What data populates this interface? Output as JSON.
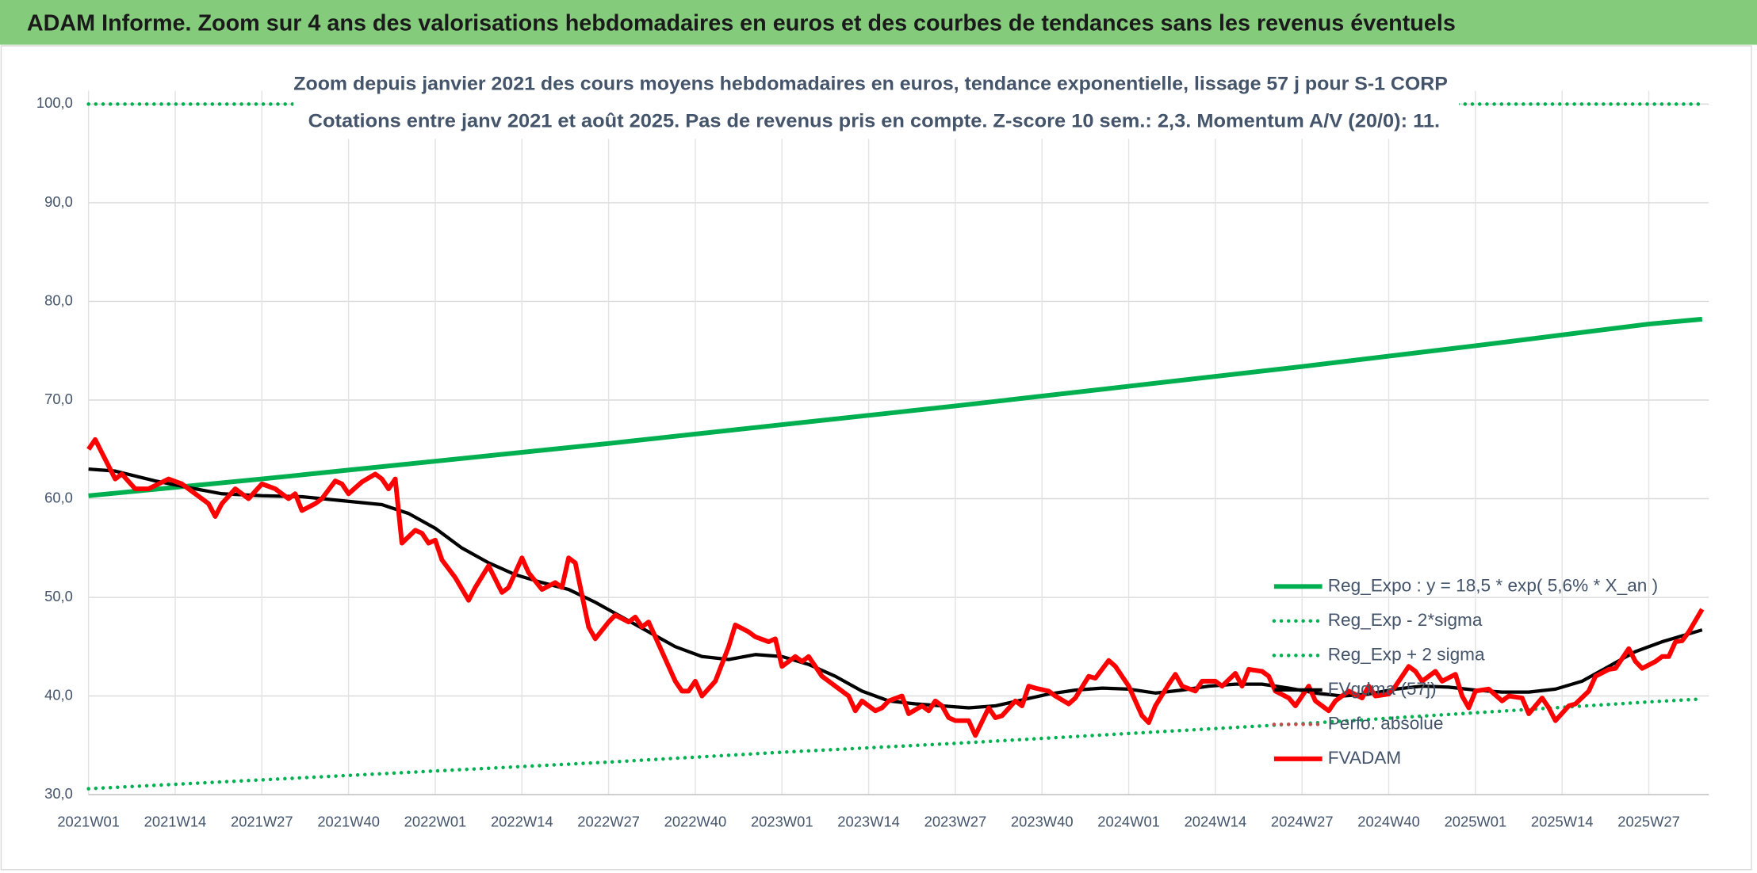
{
  "chart_data": {
    "type": "line",
    "title": "ADAM Informe. Zoom sur 4 ans des valorisations hebdomadaires en euros et des courbes de tendances sans les revenus éventuels",
    "subtitle": [
      "Zoom depuis janvier 2021 des cours moyens hebdomadaires en euros, tendance exponentielle, lissage 57 j pour S-1 CORP",
      "Cotations entre janv 2021 et août 2025. Pas de revenus pris en compte. Z-score 10 sem.: 2,3. Momentum A/V (20/0): 11."
    ],
    "xlim": [
      0,
      243
    ],
    "xticks": [
      {
        "value": 0,
        "label": "2021W01"
      },
      {
        "value": 13,
        "label": "2021W14"
      },
      {
        "value": 26,
        "label": "2021W27"
      },
      {
        "value": 39,
        "label": "2021W40"
      },
      {
        "value": 52,
        "label": "2022W01"
      },
      {
        "value": 65,
        "label": "2022W14"
      },
      {
        "value": 78,
        "label": "2022W27"
      },
      {
        "value": 91,
        "label": "2022W40"
      },
      {
        "value": 104,
        "label": "2023W01"
      },
      {
        "value": 117,
        "label": "2023W14"
      },
      {
        "value": 130,
        "label": "2023W27"
      },
      {
        "value": 143,
        "label": "2023W40"
      },
      {
        "value": 156,
        "label": "2024W01"
      },
      {
        "value": 169,
        "label": "2024W14"
      },
      {
        "value": 182,
        "label": "2024W27"
      },
      {
        "value": 195,
        "label": "2024W40"
      },
      {
        "value": 208,
        "label": "2025W01"
      },
      {
        "value": 221,
        "label": "2025W14"
      },
      {
        "value": 234,
        "label": "2025W27"
      }
    ],
    "ylim": [
      30,
      100
    ],
    "yticks": [
      {
        "value": 30,
        "label": "30,0"
      },
      {
        "value": 40,
        "label": "40,0"
      },
      {
        "value": 50,
        "label": "50,0"
      },
      {
        "value": 60,
        "label": "60,0"
      },
      {
        "value": 70,
        "label": "70,0"
      },
      {
        "value": 80,
        "label": "80,0"
      },
      {
        "value": 90,
        "label": "90,0"
      },
      {
        "value": 100,
        "label": "100,0"
      }
    ],
    "grid": true,
    "legend": "bottom-right",
    "series": [
      {
        "name": "Reg_Expo : y = 18,5 * exp( 5,6% *  X_an )",
        "color": "#00b050",
        "style": "solid",
        "x": [
          0,
          26,
          52,
          78,
          104,
          130,
          156,
          182,
          208,
          234,
          242
        ],
        "values": [
          60.3,
          62.0,
          63.8,
          65.6,
          67.5,
          69.4,
          71.4,
          73.4,
          75.5,
          77.7,
          78.2
        ]
      },
      {
        "name": "Reg_Exp - 2*sigma",
        "color": "#00b050",
        "style": "dotted",
        "x": [
          0,
          26,
          52,
          78,
          104,
          130,
          156,
          182,
          208,
          234,
          242
        ],
        "values": [
          30.6,
          31.5,
          32.4,
          33.3,
          34.3,
          35.2,
          36.2,
          37.2,
          38.3,
          39.4,
          39.7
        ]
      },
      {
        "name": "Reg_Exp + 2 sigma",
        "color": "#00b050",
        "style": "dotted",
        "x": [
          0,
          242
        ],
        "values": [
          100,
          100
        ]
      },
      {
        "name": "FVgdma (57j)",
        "color": "#000000",
        "style": "solid",
        "x": [
          0,
          4,
          10,
          16,
          20,
          26,
          32,
          38,
          44,
          48,
          52,
          56,
          60,
          64,
          68,
          72,
          76,
          80,
          84,
          88,
          92,
          96,
          100,
          104,
          108,
          112,
          116,
          120,
          124,
          128,
          132,
          136,
          140,
          144,
          148,
          152,
          156,
          160,
          164,
          168,
          172,
          176,
          180,
          184,
          188,
          192,
          196,
          200,
          204,
          208,
          212,
          216,
          220,
          224,
          228,
          232,
          236,
          240,
          242
        ],
        "values": [
          63,
          62.8,
          61.8,
          61,
          60.5,
          60.3,
          60.2,
          59.8,
          59.4,
          58.5,
          57,
          55,
          53.5,
          52.3,
          51.5,
          50.8,
          49.5,
          48,
          46.5,
          45,
          44,
          43.7,
          44.2,
          44,
          43.2,
          42,
          40.5,
          39.5,
          39.2,
          39,
          38.8,
          39,
          39.6,
          40.2,
          40.6,
          40.8,
          40.7,
          40.3,
          40.6,
          41,
          41.2,
          41.2,
          40.8,
          40.3,
          40,
          40.2,
          40.7,
          41,
          40.9,
          40.6,
          40.4,
          40.4,
          40.7,
          41.5,
          43,
          44.5,
          45.5,
          46.3,
          46.7
        ]
      },
      {
        "name": "Perfo. absolue",
        "color": "#c0504d",
        "style": "dotted",
        "x": [],
        "values": []
      },
      {
        "name": "FVADAM",
        "color": "#ff0000",
        "style": "solid",
        "x": [
          0,
          1,
          4,
          5,
          7,
          9,
          12,
          14,
          15,
          17,
          18,
          19,
          20,
          22,
          24,
          26,
          28,
          30,
          31,
          32,
          34,
          35,
          37,
          38,
          39,
          41,
          43,
          44,
          45,
          46,
          47,
          49,
          50,
          51,
          52,
          53,
          55,
          57,
          58,
          60,
          62,
          63,
          65,
          66,
          68,
          70,
          71,
          72,
          73,
          75,
          76,
          78,
          79,
          81,
          82,
          83,
          84,
          85,
          87,
          88,
          89,
          90,
          91,
          92,
          94,
          96,
          97,
          99,
          100,
          102,
          103,
          104,
          106,
          107,
          108,
          109,
          110,
          112,
          114,
          115,
          116,
          118,
          119,
          120,
          122,
          123,
          125,
          126,
          127,
          128,
          129,
          130,
          132,
          133,
          135,
          136,
          137,
          139,
          140,
          141,
          142,
          144,
          145,
          147,
          148,
          150,
          151,
          153,
          154,
          156,
          158,
          159,
          160,
          162,
          163,
          164,
          166,
          167,
          169,
          170,
          172,
          173,
          174,
          176,
          177,
          178,
          180,
          181,
          182,
          183,
          184,
          186,
          187,
          189,
          191,
          192,
          193,
          195,
          196,
          198,
          199,
          200,
          202,
          203,
          205,
          206,
          207,
          208,
          210,
          212,
          213,
          215,
          216,
          218,
          219,
          220,
          222,
          223,
          225,
          226,
          228,
          229,
          231,
          232,
          233,
          235,
          236,
          237,
          238,
          239,
          240,
          242
        ],
        "values": [
          65,
          66,
          62,
          62.5,
          61,
          61,
          62,
          61.5,
          61,
          60,
          59.5,
          58.2,
          59.5,
          61,
          60,
          61.5,
          61,
          60,
          60.5,
          58.8,
          59.5,
          60,
          61.8,
          61.5,
          60.5,
          61.7,
          62.5,
          62,
          61,
          62,
          55.5,
          56.8,
          56.5,
          55.5,
          55.8,
          53.8,
          52,
          49.7,
          51,
          53.2,
          50.5,
          51,
          54,
          52.5,
          50.8,
          51.5,
          51,
          54,
          53.5,
          47,
          45.8,
          47.5,
          48.2,
          47.5,
          48,
          47,
          47.5,
          46,
          43,
          41.5,
          40.5,
          40.5,
          41.5,
          40,
          41.5,
          45,
          47.2,
          46.5,
          46,
          45.5,
          45.8,
          43,
          44,
          43.5,
          44,
          43,
          42,
          41,
          40,
          38.5,
          39.5,
          38.5,
          38.8,
          39.5,
          40,
          38.2,
          39,
          38.5,
          39.5,
          39,
          37.8,
          37.5,
          37.5,
          36,
          38.8,
          37.8,
          38,
          39.5,
          39,
          41,
          40.8,
          40.5,
          40,
          39.2,
          39.8,
          42,
          41.8,
          43.6,
          43,
          41,
          38,
          37.3,
          39,
          41.2,
          42.2,
          41,
          40.5,
          41.5,
          41.5,
          41,
          42.3,
          41,
          42.7,
          42.5,
          42,
          40.5,
          39.8,
          39,
          40,
          41,
          39.5,
          38.5,
          39.5,
          40.5,
          39.8,
          41,
          40,
          40.2,
          41,
          43,
          42.5,
          41.5,
          42.5,
          41.5,
          42.2,
          40,
          38.8,
          40.5,
          40.7,
          39.5,
          40,
          39.8,
          38.2,
          39.8,
          38.8,
          37.5,
          39,
          39.2,
          40.5,
          42,
          42.7,
          42.8,
          44.8,
          43.5,
          42.8,
          43.5,
          44,
          44,
          45.5,
          45.6,
          46.5,
          48.8
        ]
      }
    ]
  }
}
